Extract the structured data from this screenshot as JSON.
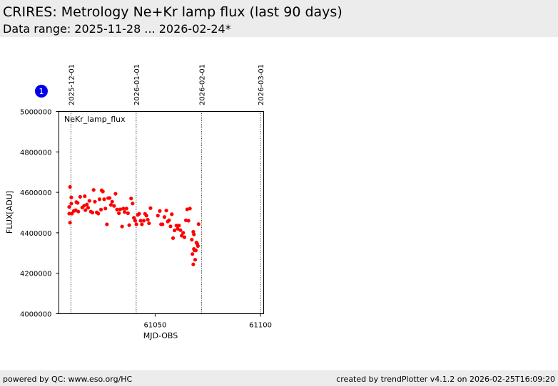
{
  "header": {
    "title": "CRIRES: Metrology Ne+Kr lamp flux (last 90 days)",
    "subtitle": "Data range: 2025-11-28 ... 2026-02-24*"
  },
  "footer": {
    "left": "powered by QC: www.eso.org/HC",
    "right": "created by trendPlotter v4.1.2 on 2026-02-25T16:09:20"
  },
  "marker": {
    "label": "1",
    "color": "#0000ee"
  },
  "chart_data": {
    "type": "scatter",
    "xlabel": "MJD-OBS",
    "ylabel": "FLUX[ADU]",
    "xlim": [
      61004.3,
      61101.5
    ],
    "ylim": [
      4000000,
      5000000
    ],
    "x_ticks": [
      61050,
      61100
    ],
    "y_ticks": [
      4000000,
      4200000,
      4400000,
      4600000,
      4800000,
      5000000
    ],
    "date_markers": [
      {
        "label": "2025-12-01",
        "mjd": 61010
      },
      {
        "label": "2026-01-01",
        "mjd": 61041
      },
      {
        "label": "2026-02-01",
        "mjd": 61072
      },
      {
        "label": "2026-03-01",
        "mjd": 61100
      }
    ],
    "series": [
      {
        "name": "NeKr_lamp_flux",
        "color": "#ff0000",
        "points": [
          [
            61009.2,
            4528000
          ],
          [
            61009.2,
            4495000
          ],
          [
            61009.6,
            4627000
          ],
          [
            61009.6,
            4450000
          ],
          [
            61010.2,
            4544000
          ],
          [
            61010.2,
            4575000
          ],
          [
            61010.5,
            4495000
          ],
          [
            61011.4,
            4508000
          ],
          [
            61012.3,
            4512000
          ],
          [
            61012.6,
            4552000
          ],
          [
            61013.2,
            4548000
          ],
          [
            61013.5,
            4505000
          ],
          [
            61014.4,
            4578000
          ],
          [
            61015.4,
            4525000
          ],
          [
            61016.3,
            4534000
          ],
          [
            61016.6,
            4581000
          ],
          [
            61016.9,
            4512000
          ],
          [
            61017.6,
            4540000
          ],
          [
            61018.2,
            4524000
          ],
          [
            61018.8,
            4558000
          ],
          [
            61019.5,
            4505000
          ],
          [
            61020.2,
            4500000
          ],
          [
            61020.8,
            4612000
          ],
          [
            61021.4,
            4554000
          ],
          [
            61022.3,
            4501000
          ],
          [
            61023.0,
            4495000
          ],
          [
            61023.6,
            4566000
          ],
          [
            61024.3,
            4515000
          ],
          [
            61024.6,
            4610000
          ],
          [
            61025.2,
            4604000
          ],
          [
            61025.8,
            4566000
          ],
          [
            61026.4,
            4520000
          ],
          [
            61027.1,
            4442000
          ],
          [
            61027.7,
            4572000
          ],
          [
            61028.4,
            4572000
          ],
          [
            61029.0,
            4538000
          ],
          [
            61029.6,
            4554000
          ],
          [
            61030.5,
            4533000
          ],
          [
            61031.2,
            4593000
          ],
          [
            61031.9,
            4515000
          ],
          [
            61032.8,
            4497000
          ],
          [
            61033.4,
            4516000
          ],
          [
            61034.3,
            4431000
          ],
          [
            61034.9,
            4520000
          ],
          [
            61035.5,
            4503000
          ],
          [
            61036.4,
            4520000
          ],
          [
            61037.1,
            4497000
          ],
          [
            61037.7,
            4438000
          ],
          [
            61038.6,
            4570000
          ],
          [
            61039.3,
            4545000
          ],
          [
            61039.9,
            4474000
          ],
          [
            61040.5,
            4460000
          ],
          [
            61041.1,
            4442000
          ],
          [
            61041.8,
            4489000
          ],
          [
            61042.4,
            4494000
          ],
          [
            61043.1,
            4460000
          ],
          [
            61043.7,
            4442000
          ],
          [
            61044.6,
            4460000
          ],
          [
            61045.2,
            4494000
          ],
          [
            61045.9,
            4485000
          ],
          [
            61046.5,
            4465000
          ],
          [
            61047.1,
            4447000
          ],
          [
            61047.8,
            4522000
          ],
          [
            61051.3,
            4485000
          ],
          [
            61052.2,
            4508000
          ],
          [
            61052.8,
            4442000
          ],
          [
            61053.5,
            4442000
          ],
          [
            61054.4,
            4478000
          ],
          [
            61055.3,
            4510000
          ],
          [
            61056.0,
            4456000
          ],
          [
            61056.6,
            4462000
          ],
          [
            61057.3,
            4432000
          ],
          [
            61057.9,
            4492000
          ],
          [
            61058.5,
            4374000
          ],
          [
            61059.2,
            4412000
          ],
          [
            61060.1,
            4436000
          ],
          [
            61060.7,
            4420000
          ],
          [
            61061.3,
            4436000
          ],
          [
            61062.0,
            4413000
          ],
          [
            61062.6,
            4386000
          ],
          [
            61063.3,
            4400000
          ],
          [
            61063.9,
            4378000
          ],
          [
            61064.6,
            4462000
          ],
          [
            61065.2,
            4516000
          ],
          [
            61065.8,
            4460000
          ],
          [
            61066.5,
            4520000
          ],
          [
            61067.4,
            4366000
          ],
          [
            61067.7,
            4295000
          ],
          [
            61068.1,
            4244000
          ],
          [
            61068.1,
            4405000
          ],
          [
            61068.4,
            4320000
          ],
          [
            61068.4,
            4392000
          ],
          [
            61068.7,
            4313000
          ],
          [
            61069.0,
            4267000
          ],
          [
            61069.3,
            4313000
          ],
          [
            61069.6,
            4352000
          ],
          [
            61070.0,
            4345000
          ],
          [
            61070.3,
            4335000
          ],
          [
            61070.6,
            4443000
          ]
        ]
      }
    ]
  }
}
